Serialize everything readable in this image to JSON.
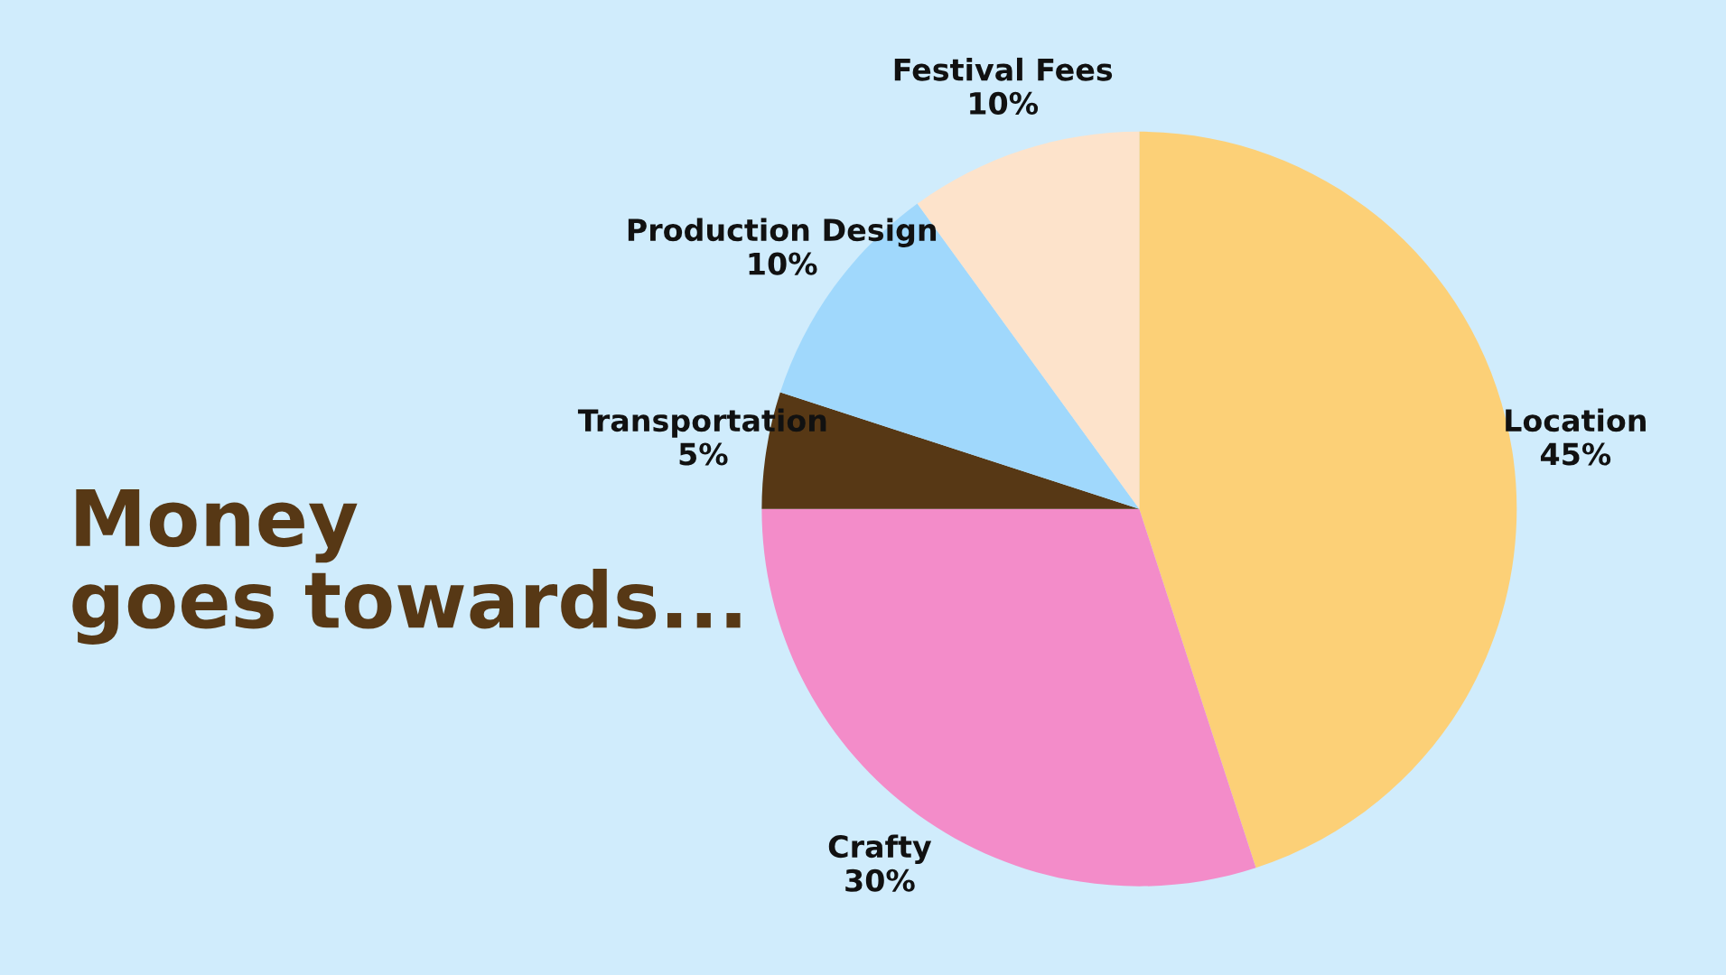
{
  "chart_data": {
    "type": "pie",
    "title": "Money\ngoes towards...",
    "categories": [
      "Location",
      "Crafty",
      "Transportation",
      "Production Design",
      "Festival Fees"
    ],
    "values": [
      45,
      30,
      5,
      10,
      10
    ],
    "value_labels": [
      "45%",
      "30%",
      "5%",
      "10%",
      "10%"
    ],
    "colors": [
      "#fcd077",
      "#f38cc9",
      "#573815",
      "#a0d8fc",
      "#fde3cb"
    ],
    "legend": false
  }
}
